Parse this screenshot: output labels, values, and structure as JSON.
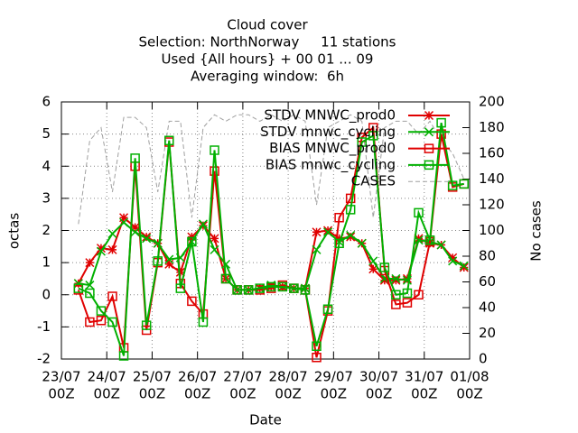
{
  "chart_data": {
    "type": "line",
    "title": [
      "Cloud cover",
      "Selection: NorthNorway     11 stations",
      "Used {All hours} + 00 01 ... 09",
      "Averaging window:  6h"
    ],
    "xlabel": "Date",
    "ylabel": "octas",
    "y2label": "No cases",
    "x": [
      "23/07 09Z",
      "23/07 15Z",
      "23/07 21Z",
      "24/07 03Z",
      "24/07 09Z",
      "24/07 15Z",
      "24/07 21Z",
      "25/07 03Z",
      "25/07 09Z",
      "25/07 15Z",
      "25/07 21Z",
      "26/07 03Z",
      "26/07 09Z",
      "26/07 15Z",
      "26/07 21Z",
      "27/07 03Z",
      "27/07 09Z",
      "27/07 15Z",
      "27/07 21Z",
      "28/07 03Z",
      "28/07 09Z",
      "28/07 15Z",
      "28/07 21Z",
      "29/07 03Z",
      "29/07 09Z",
      "29/07 15Z",
      "29/07 21Z",
      "30/07 03Z",
      "30/07 09Z",
      "30/07 15Z",
      "30/07 21Z",
      "31/07 03Z",
      "31/07 09Z",
      "31/07 15Z",
      "31/07 21Z"
    ],
    "xlim": [
      "23/07 00Z",
      "01/08 00Z"
    ],
    "xticks": [
      {
        "value": "23/07 00Z",
        "label": [
          "23/07",
          "00Z"
        ]
      },
      {
        "value": "24/07 00Z",
        "label": [
          "24/07",
          "00Z"
        ]
      },
      {
        "value": "25/07 00Z",
        "label": [
          "25/07",
          "00Z"
        ]
      },
      {
        "value": "26/07 00Z",
        "label": [
          "26/07",
          "00Z"
        ]
      },
      {
        "value": "27/07 00Z",
        "label": [
          "27/07",
          "00Z"
        ]
      },
      {
        "value": "28/07 00Z",
        "label": [
          "28/07",
          "00Z"
        ]
      },
      {
        "value": "29/07 00Z",
        "label": [
          "29/07",
          "00Z"
        ]
      },
      {
        "value": "30/07 00Z",
        "label": [
          "30/07",
          "00Z"
        ]
      },
      {
        "value": "31/07 00Z",
        "label": [
          "31/07",
          "00Z"
        ]
      },
      {
        "value": "01/08 00Z",
        "label": [
          "01/08",
          "00Z"
        ]
      }
    ],
    "ylim": [
      -2,
      6
    ],
    "yticks": [
      -2,
      -1,
      0,
      1,
      2,
      3,
      4,
      5,
      6
    ],
    "y2lim": [
      0,
      200
    ],
    "y2ticks": [
      0,
      20,
      40,
      60,
      80,
      100,
      120,
      140,
      160,
      180,
      200
    ],
    "grid": true,
    "legend": "top right",
    "series": [
      {
        "name": "STDV MNWC_prod0",
        "color": "#e00000",
        "marker": "star",
        "values": [
          0.35,
          1.0,
          1.45,
          1.4,
          2.4,
          2.1,
          1.8,
          1.6,
          0.95,
          0.7,
          1.8,
          2.15,
          1.75,
          0.5,
          0.15,
          0.15,
          0.2,
          0.25,
          0.25,
          0.2,
          0.2,
          1.95,
          2.0,
          1.75,
          1.8,
          1.6,
          0.8,
          0.45,
          0.45,
          0.5,
          1.75,
          1.6,
          1.55,
          1.15,
          0.85
        ]
      },
      {
        "name": "STDV mnwc_cycling",
        "color": "#00b000",
        "marker": "cross",
        "values": [
          0.35,
          0.3,
          1.35,
          1.9,
          2.25,
          1.95,
          1.75,
          1.6,
          1.1,
          1.15,
          1.65,
          2.2,
          1.4,
          0.95,
          0.15,
          0.15,
          0.2,
          0.3,
          0.25,
          0.2,
          0.2,
          1.4,
          1.95,
          1.65,
          1.85,
          1.6,
          1.05,
          0.5,
          0.5,
          0.45,
          1.7,
          1.65,
          1.55,
          1.05,
          0.9
        ]
      },
      {
        "name": "BIAS MNWC_prod0",
        "color": "#e00000",
        "marker": "square",
        "values": [
          0.15,
          -0.85,
          -0.8,
          -0.05,
          -1.65,
          4.0,
          -1.1,
          1.0,
          4.75,
          0.35,
          -0.2,
          -0.6,
          3.85,
          0.5,
          0.15,
          0.15,
          0.15,
          0.2,
          0.3,
          0.2,
          0.15,
          -1.95,
          -0.5,
          2.4,
          3.0,
          4.9,
          5.2,
          0.75,
          -0.3,
          -0.25,
          0.0,
          1.65,
          5.0,
          3.35,
          3.45
        ]
      },
      {
        "name": "BIAS mnwc_cycling",
        "color": "#00b000",
        "marker": "square",
        "values": [
          0.2,
          0.05,
          -0.5,
          -0.85,
          -1.9,
          4.25,
          -0.95,
          1.05,
          4.8,
          0.2,
          1.65,
          -0.85,
          4.5,
          0.5,
          0.15,
          0.15,
          0.2,
          0.25,
          0.25,
          0.2,
          0.15,
          -1.6,
          -0.45,
          1.6,
          2.65,
          4.75,
          4.95,
          0.85,
          0.0,
          0.05,
          2.55,
          1.7,
          5.35,
          3.4,
          3.45
        ]
      },
      {
        "name": "CASES",
        "color": "#a0a0a0",
        "axis": "y2",
        "dash": true,
        "values": [
          105,
          170,
          180,
          130,
          188,
          188,
          180,
          130,
          185,
          185,
          110,
          180,
          190,
          185,
          190,
          190,
          185,
          190,
          185,
          190,
          185,
          120,
          180,
          185,
          190,
          185,
          110,
          180,
          185,
          185,
          175,
          185,
          170,
          160,
          140
        ]
      }
    ]
  }
}
